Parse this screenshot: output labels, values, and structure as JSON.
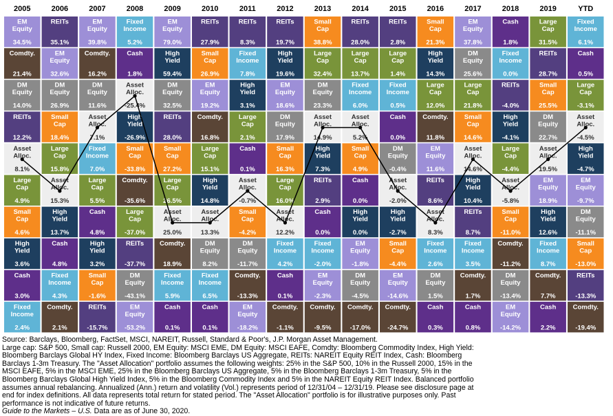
{
  "chart_data": {
    "type": "table",
    "years": [
      "2005",
      "2006",
      "2007",
      "2008",
      "2009",
      "2010",
      "2011",
      "2012",
      "2013",
      "2014",
      "2015",
      "2016",
      "2017",
      "2018",
      "2019",
      "YTD"
    ],
    "columns": [
      [
        [
          "EM Equity",
          "34.5%"
        ],
        [
          "Comdty.",
          "21.4%"
        ],
        [
          "DM Equity",
          "14.0%"
        ],
        [
          "REITs",
          "12.2%"
        ],
        [
          "Asset Alloc.",
          "8.1%"
        ],
        [
          "Large Cap",
          "4.9%"
        ],
        [
          "Small Cap",
          "4.6%"
        ],
        [
          "High Yield",
          "3.6%"
        ],
        [
          "Cash",
          "3.0%"
        ],
        [
          "Fixed Income",
          "2.4%"
        ]
      ],
      [
        [
          "REITs",
          "35.1%"
        ],
        [
          "EM Equity",
          "32.6%"
        ],
        [
          "DM Equity",
          "26.9%"
        ],
        [
          "Small Cap",
          "18.4%"
        ],
        [
          "Large Cap",
          "15.8%"
        ],
        [
          "Asset Alloc.",
          "15.3%"
        ],
        [
          "High Yield",
          "13.7%"
        ],
        [
          "Cash",
          "4.8%"
        ],
        [
          "Fixed Income",
          "4.3%"
        ],
        [
          "Comdty.",
          "2.1%"
        ]
      ],
      [
        [
          "EM Equity",
          "39.8%"
        ],
        [
          "Comdty.",
          "16.2%"
        ],
        [
          "DM Equity",
          "11.6%"
        ],
        [
          "Asset Alloc.",
          "7.1%"
        ],
        [
          "Fixed Income",
          "7.0%"
        ],
        [
          "Large Cap",
          "5.5%"
        ],
        [
          "Cash",
          "4.8%"
        ],
        [
          "High Yield",
          "3.2%"
        ],
        [
          "Small Cap",
          "-1.6%"
        ],
        [
          "REITs",
          "-15.7%"
        ]
      ],
      [
        [
          "Fixed Income",
          "5.2%"
        ],
        [
          "Cash",
          "1.8%"
        ],
        [
          "Asset Alloc.",
          "-25.4%"
        ],
        [
          "High Yield",
          "-26.9%"
        ],
        [
          "Small Cap",
          "-33.8%"
        ],
        [
          "Comdty.",
          "-35.6%"
        ],
        [
          "Large Cap",
          "-37.0%"
        ],
        [
          "REITs",
          "-37.7%"
        ],
        [
          "DM Equity",
          "-43.1%"
        ],
        [
          "EM Equity",
          "-53.2%"
        ]
      ],
      [
        [
          "EM Equity",
          "79.0%"
        ],
        [
          "High Yield",
          "59.4%"
        ],
        [
          "DM Equity",
          "32.5%"
        ],
        [
          "REITs",
          "28.0%"
        ],
        [
          "Small Cap",
          "27.2%"
        ],
        [
          "Large Cap",
          "26.5%"
        ],
        [
          "Asset Alloc.",
          "25.0%"
        ],
        [
          "Comdty.",
          "18.9%"
        ],
        [
          "Fixed Income",
          "5.9%"
        ],
        [
          "Cash",
          "0.1%"
        ]
      ],
      [
        [
          "REITs",
          "27.9%"
        ],
        [
          "Small Cap",
          "26.9%"
        ],
        [
          "EM Equity",
          "19.2%"
        ],
        [
          "Comdty.",
          "16.8%"
        ],
        [
          "Large Cap",
          "15.1%"
        ],
        [
          "High Yield",
          "14.8%"
        ],
        [
          "Asset Alloc.",
          "13.3%"
        ],
        [
          "DM Equity",
          "8.2%"
        ],
        [
          "Fixed Income",
          "6.5%"
        ],
        [
          "Cash",
          "0.1%"
        ]
      ],
      [
        [
          "REITs",
          "8.3%"
        ],
        [
          "Fixed Income",
          "7.8%"
        ],
        [
          "High Yield",
          "3.1%"
        ],
        [
          "Large Cap",
          "2.1%"
        ],
        [
          "Cash",
          "0.1%"
        ],
        [
          "Asset Alloc.",
          "-0.7%"
        ],
        [
          "Small Cap",
          "-4.2%"
        ],
        [
          "DM Equity",
          "-11.7%"
        ],
        [
          "Comdty.",
          "-13.3%"
        ],
        [
          "EM Equity",
          "-18.2%"
        ]
      ],
      [
        [
          "REITs",
          "19.7%"
        ],
        [
          "High Yield",
          "19.6%"
        ],
        [
          "EM Equity",
          "18.6%"
        ],
        [
          "DM Equity",
          "17.9%"
        ],
        [
          "Small Cap",
          "16.3%"
        ],
        [
          "Large Cap",
          "16.0%"
        ],
        [
          "Asset Alloc.",
          "12.2%"
        ],
        [
          "Fixed Income",
          "4.2%"
        ],
        [
          "Cash",
          "0.1%"
        ],
        [
          "Comdty.",
          "-1.1%"
        ]
      ],
      [
        [
          "Small Cap",
          "38.8%"
        ],
        [
          "Large Cap",
          "32.4%"
        ],
        [
          "DM Equity",
          "23.3%"
        ],
        [
          "Asset Alloc.",
          "14.9%"
        ],
        [
          "High Yield",
          "7.3%"
        ],
        [
          "REITs",
          "2.9%"
        ],
        [
          "Cash",
          "0.0%"
        ],
        [
          "Fixed Income",
          "-2.0%"
        ],
        [
          "EM Equity",
          "-2.3%"
        ],
        [
          "Comdty.",
          "-9.5%"
        ]
      ],
      [
        [
          "REITs",
          "28.0%"
        ],
        [
          "Large Cap",
          "13.7%"
        ],
        [
          "Fixed Income",
          "6.0%"
        ],
        [
          "Asset Alloc.",
          "5.2%"
        ],
        [
          "Small Cap",
          "4.9%"
        ],
        [
          "Cash",
          "0.0%"
        ],
        [
          "High Yield",
          "0.0%"
        ],
        [
          "EM Equity",
          "-1.8%"
        ],
        [
          "DM Equity",
          "-4.5%"
        ],
        [
          "Comdty.",
          "-17.0%"
        ]
      ],
      [
        [
          "REITs",
          "2.8%"
        ],
        [
          "Large Cap",
          "1.4%"
        ],
        [
          "Fixed Income",
          "0.5%"
        ],
        [
          "Cash",
          "0.0%"
        ],
        [
          "DM Equity",
          "-0.4%"
        ],
        [
          "Asset Alloc.",
          "-2.0%"
        ],
        [
          "High Yield",
          "-2.7%"
        ],
        [
          "Small Cap",
          "-4.4%"
        ],
        [
          "EM Equity",
          "-14.6%"
        ],
        [
          "Comdty.",
          "-24.7%"
        ]
      ],
      [
        [
          "Small Cap",
          "21.3%"
        ],
        [
          "High Yield",
          "14.3%"
        ],
        [
          "Large Cap",
          "12.0%"
        ],
        [
          "Comdty.",
          "11.8%"
        ],
        [
          "EM Equity",
          "11.6%"
        ],
        [
          "REITs",
          "8.6%"
        ],
        [
          "Asset Alloc.",
          "8.3%"
        ],
        [
          "Fixed Income",
          "2.6%"
        ],
        [
          "DM Equity",
          "1.5%"
        ],
        [
          "Cash",
          "0.3%"
        ]
      ],
      [
        [
          "EM Equity",
          "37.8%"
        ],
        [
          "DM Equity",
          "25.6%"
        ],
        [
          "Large Cap",
          "21.8%"
        ],
        [
          "Small Cap",
          "14.6%"
        ],
        [
          "Asset Alloc.",
          "14.6%"
        ],
        [
          "High Yield",
          "10.4%"
        ],
        [
          "REITs",
          "8.7%"
        ],
        [
          "Fixed Income",
          "3.5%"
        ],
        [
          "Comdty.",
          "1.7%"
        ],
        [
          "Cash",
          "0.8%"
        ]
      ],
      [
        [
          "Cash",
          "1.8%"
        ],
        [
          "Fixed Income",
          "0.0%"
        ],
        [
          "REITs",
          "-4.0%"
        ],
        [
          "High Yield",
          "-4.1%"
        ],
        [
          "Large Cap",
          "-4.4%"
        ],
        [
          "Asset Alloc.",
          "-5.8%"
        ],
        [
          "Small Cap",
          "-11.0%"
        ],
        [
          "Comdty.",
          "-11.2%"
        ],
        [
          "DM Equity",
          "-13.4%"
        ],
        [
          "EM Equity",
          "-14.2%"
        ]
      ],
      [
        [
          "Large Cap",
          "31.5%"
        ],
        [
          "REITs",
          "28.7%"
        ],
        [
          "Small Cap",
          "25.5%"
        ],
        [
          "DM Equity",
          "22.7%"
        ],
        [
          "Asset Alloc.",
          "19.5%"
        ],
        [
          "EM Equity",
          "18.9%"
        ],
        [
          "High Yield",
          "12.6%"
        ],
        [
          "Fixed Income",
          "8.7%"
        ],
        [
          "Comdty.",
          "7.7%"
        ],
        [
          "Cash",
          "2.2%"
        ]
      ],
      [
        [
          "Fixed Income",
          "6.1%"
        ],
        [
          "Cash",
          "0.5%"
        ],
        [
          "Large Cap",
          "-3.1%"
        ],
        [
          "Asset Alloc.",
          "-4.5%"
        ],
        [
          "High Yield",
          "-4.7%"
        ],
        [
          "EM Equity",
          "-9.7%"
        ],
        [
          "DM Equity",
          "-11.1%"
        ],
        [
          "Small Cap",
          "-13.0%"
        ],
        [
          "REITs",
          "-13.3%"
        ],
        [
          "Comdty.",
          "-19.4%"
        ]
      ]
    ],
    "colors": {
      "EM Equity": "#9d8fd7",
      "REITs": "#533f80",
      "Comdty.": "#5a4536",
      "DM Equity": "#8a8a8a",
      "Fixed Income": "#5fb4d6",
      "Cash": "#5e2f8a",
      "High Yield": "#1e3f5f",
      "Small Cap": "#f68b1f",
      "Large Cap": "#79943a",
      "Asset Alloc.": "#eeeeee"
    },
    "asset_alloc_text_color": "#333333"
  },
  "footer": {
    "lines": [
      "Source: Barclays, Bloomberg, FactSet, MSCI, NAREIT, Russell, Standard & Poor's, J.P. Morgan Asset Management.",
      "Large cap: S&P 500, Small cap: Russell 2000, EM Equity: MSCI EME, DM Equity: MSCI EAFE, Comdty: Bloomberg Commodity Index, High Yield:",
      "Bloomberg Barclays Global HY Index, Fixed Income: Bloomberg Barclays US Aggregate, REITs: NAREIT Equity REIT Index, Cash: Bloomberg",
      "Barclays 1-3m Treasury. The \"Asset Allocation\" portfolio assumes the following weights: 25% in the S&P 500, 10% in the Russell 2000, 15% in the",
      "MSCI EAFE, 5% in the MSCI EME, 25% in the Bloomberg Barclays US Aggregate, 5% in the Bloomberg Barclays 1-3m Treasury, 5% in the",
      "Bloomberg Barclays Global High Yield Index, 5% in the Bloomberg Commodity Index and 5% in the NAREIT Equity REIT Index. Balanced portfolio",
      "assumes annual rebalancing. Annualized (Ann.) return and volatility (Vol.) represents period of 12/31/04 – 12/31/19. Please see disclosure page at",
      "end for index definitions. All data represents total return for stated period. The \"Asset Allocation\" portfolio is for illustrative purposes only. Past",
      "performance is not indicative of future returns."
    ],
    "guide_italic": "Guide to the Markets – U.S.",
    "guide_rest": " Data are as of June 30, 2020."
  }
}
